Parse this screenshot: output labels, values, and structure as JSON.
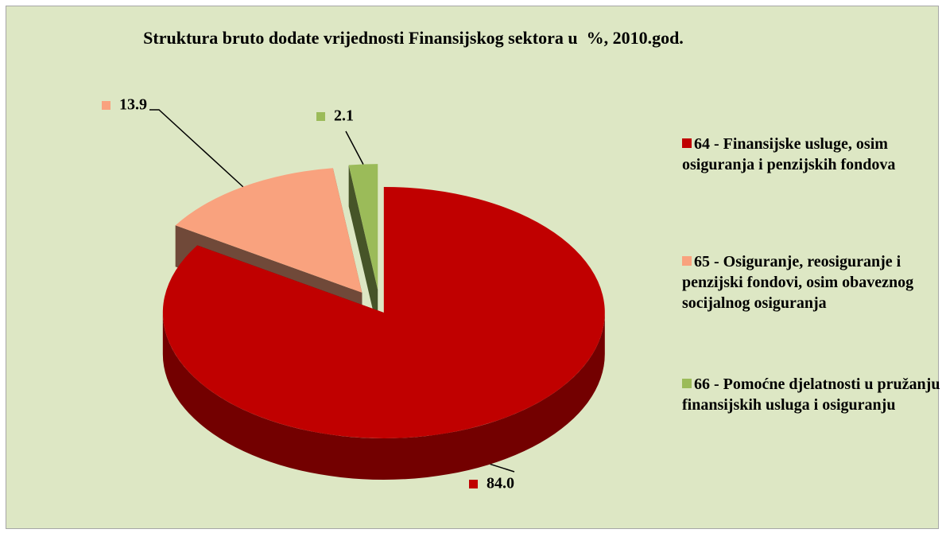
{
  "chart_data": {
    "type": "pie",
    "title": "Struktura bruto dodate vrijednosti Finansijskog sektora u  %, 2010.god.",
    "categories": [
      "64 - Finansijske usluge, osim osiguranja i penzijskih fondova",
      "65 - Osiguranje, reosiguranje i penzijski fondovi, osim obaveznog socijalnog osiguranja",
      "66 - Pomoćne djelatnosti u pružanju finansijskih usluga i osiguranju"
    ],
    "values": [
      84.0,
      13.9,
      2.1
    ],
    "value_labels": [
      "84.0",
      "13.9",
      "2.1"
    ],
    "colors": [
      "#c00000",
      "#f9a27e",
      "#9bbb59"
    ],
    "legend": "right"
  }
}
